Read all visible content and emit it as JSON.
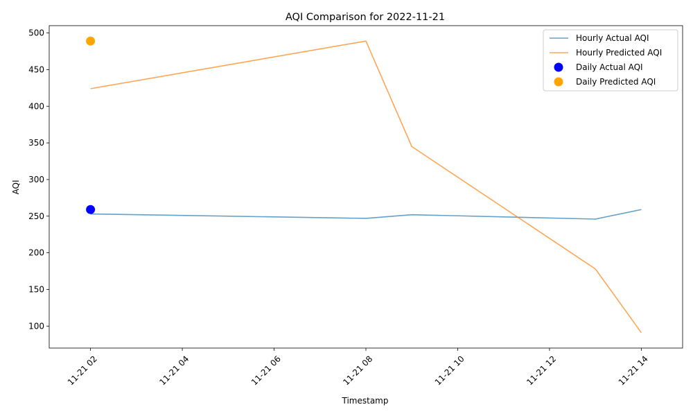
{
  "chart_data": {
    "type": "line",
    "title": "AQI Comparison for 2022-11-21",
    "xlabel": "Timestamp",
    "ylabel": "AQI",
    "x_ticks": [
      "11-21 02",
      "11-21 04",
      "11-21 06",
      "11-21 08",
      "11-21 10",
      "11-21 12",
      "11-21 14"
    ],
    "x_tick_hours": [
      2,
      4,
      6,
      8,
      10,
      12,
      14
    ],
    "xlim_hours": [
      1.1,
      14.9
    ],
    "ylim": [
      70,
      510
    ],
    "y_ticks": [
      100,
      150,
      200,
      250,
      300,
      350,
      400,
      450,
      500
    ],
    "grid": false,
    "legend_position": "top-right",
    "series": [
      {
        "name": "Hourly Actual AQI",
        "kind": "line",
        "color": "#1f77b4",
        "opacity": 0.7,
        "x_hours": [
          2,
          8,
          9,
          13,
          14
        ],
        "values": [
          253,
          247,
          252,
          246,
          259
        ]
      },
      {
        "name": "Hourly Predicted AQI",
        "kind": "line",
        "color": "#ff7f0e",
        "opacity": 0.7,
        "x_hours": [
          2,
          8,
          9,
          13,
          14
        ],
        "values": [
          424,
          489,
          345,
          178,
          91
        ]
      },
      {
        "name": "Daily Actual AQI",
        "kind": "scatter",
        "color": "#0000ff",
        "x_hours": [
          2
        ],
        "values": [
          259
        ]
      },
      {
        "name": "Daily Predicted AQI",
        "kind": "scatter",
        "color": "#ffa500",
        "x_hours": [
          2
        ],
        "values": [
          489
        ]
      }
    ]
  }
}
